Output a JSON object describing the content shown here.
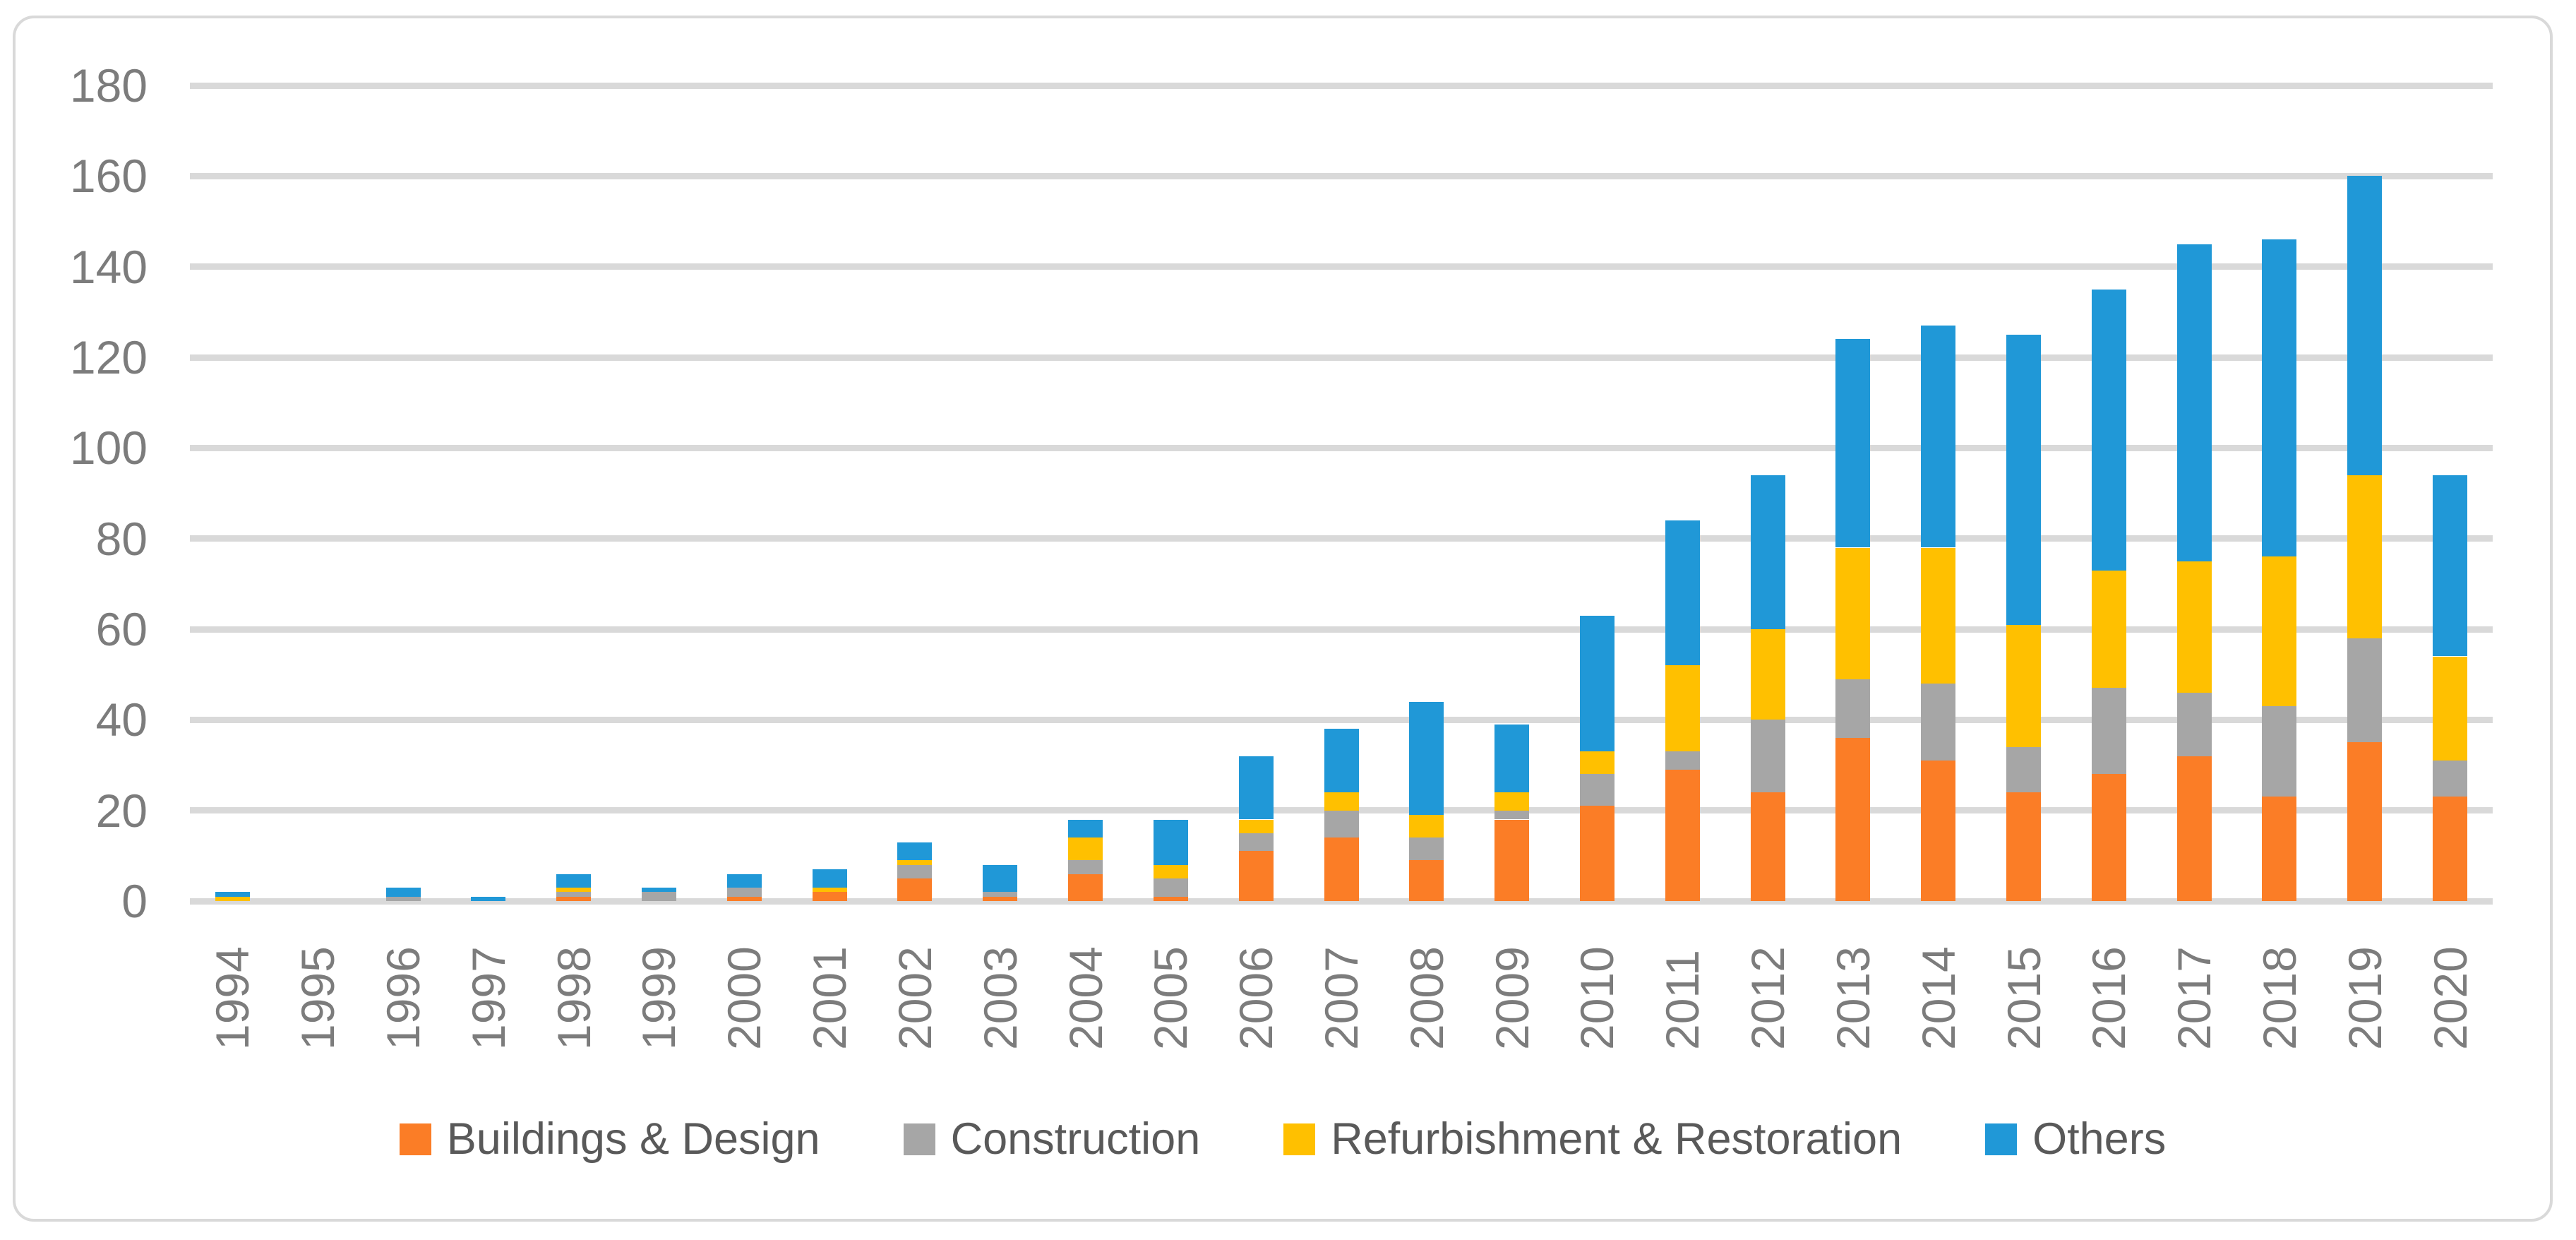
{
  "chart_data": {
    "type": "bar",
    "stacked": true,
    "title": "",
    "xlabel": "",
    "ylabel": "",
    "categories": [
      "1994",
      "1995",
      "1996",
      "1997",
      "1998",
      "1999",
      "2000",
      "2001",
      "2002",
      "2003",
      "2004",
      "2005",
      "2006",
      "2007",
      "2008",
      "2009",
      "2010",
      "2011",
      "2012",
      "2013",
      "2014",
      "2015",
      "2016",
      "2017",
      "2018",
      "2019",
      "2020"
    ],
    "series": [
      {
        "name": "Buildings & Design",
        "color": "#FB7D26",
        "values": [
          0,
          0,
          0,
          0,
          1,
          0,
          1,
          2,
          5,
          1,
          6,
          1,
          11,
          14,
          9,
          18,
          21,
          29,
          24,
          36,
          31,
          24,
          28,
          32,
          23,
          35,
          23
        ]
      },
      {
        "name": "Construction",
        "color": "#A6A6A6",
        "values": [
          0,
          0,
          1,
          0,
          1,
          2,
          2,
          0,
          3,
          1,
          3,
          4,
          4,
          6,
          5,
          2,
          7,
          4,
          16,
          13,
          17,
          10,
          19,
          14,
          20,
          23,
          8
        ]
      },
      {
        "name": "Refurbishment & Restoration",
        "color": "#FFC000",
        "values": [
          1,
          0,
          0,
          0,
          1,
          0,
          0,
          1,
          1,
          0,
          5,
          3,
          3,
          4,
          5,
          4,
          5,
          19,
          20,
          29,
          30,
          27,
          26,
          29,
          33,
          36,
          23
        ]
      },
      {
        "name": "Others",
        "color": "#2098D7",
        "values": [
          1,
          0,
          2,
          1,
          3,
          1,
          3,
          4,
          4,
          6,
          4,
          10,
          14,
          14,
          25,
          15,
          30,
          32,
          34,
          46,
          49,
          64,
          62,
          70,
          70,
          66,
          40
        ]
      }
    ],
    "totals": [
      2,
      0,
      3,
      1,
      6,
      3,
      6,
      7,
      13,
      8,
      18,
      18,
      32,
      38,
      44,
      39,
      63,
      84,
      94,
      124,
      127,
      125,
      135,
      145,
      146,
      160,
      94
    ],
    "ylim": [
      0,
      180
    ],
    "y_ticks": [
      0,
      20,
      40,
      60,
      80,
      100,
      120,
      140,
      160,
      180
    ],
    "grid": true,
    "legend_position": "bottom",
    "axis_text_color": "#7C7C7C",
    "legend_text_color": "#595959",
    "gridline_color": "#D9D9D9"
  }
}
